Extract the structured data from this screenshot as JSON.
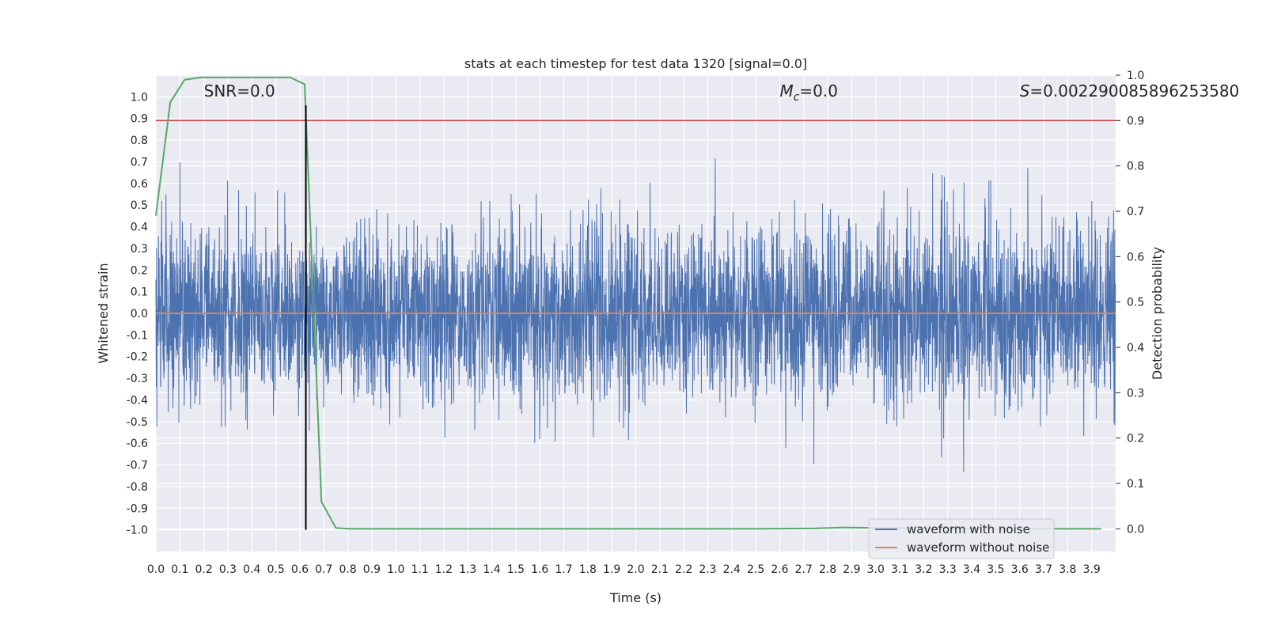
{
  "chart_data": {
    "type": "line",
    "title": "stats at each timestep for test data 1320 [signal=0.0]",
    "xlabel": "Time (s)",
    "ylabel": "Whitened strain",
    "y2label": "Detection probability",
    "xlim": [
      0.0,
      4.0
    ],
    "ylim": [
      -1.1,
      1.1
    ],
    "y2lim": [
      -0.05,
      1.0
    ],
    "x_ticks": [
      "0.0",
      "0.1",
      "0.2",
      "0.3",
      "0.4",
      "0.5",
      "0.6",
      "0.7",
      "0.8",
      "0.9",
      "1.0",
      "1.1",
      "1.2",
      "1.3",
      "1.4",
      "1.5",
      "1.6",
      "1.7",
      "1.8",
      "1.9",
      "2.0",
      "2.1",
      "2.2",
      "2.3",
      "2.4",
      "2.5",
      "2.6",
      "2.7",
      "2.8",
      "2.9",
      "3.0",
      "3.1",
      "3.2",
      "3.3",
      "3.4",
      "3.5",
      "3.6",
      "3.7",
      "3.8",
      "3.9"
    ],
    "y_ticks": [
      "1.0",
      "0.9",
      "0.8",
      "0.7",
      "0.6",
      "0.5",
      "0.4",
      "0.3",
      "0.2",
      "0.1",
      "0.0",
      "-0.1",
      "-0.2",
      "-0.3",
      "-0.4",
      "-0.5",
      "-0.6",
      "-0.7",
      "-0.8",
      "-0.9",
      "-1.0"
    ],
    "y2_ticks": [
      "1.0",
      "0.9",
      "0.8",
      "0.7",
      "0.6",
      "0.5",
      "0.4",
      "0.3",
      "0.2",
      "0.1",
      "0.0"
    ],
    "annotations": {
      "snr": "SNR=0.0",
      "mc": "M",
      "mc_sub": "c",
      "mc_value": "=0.0",
      "s": "S",
      "s_value": "=0.002290085896253580"
    },
    "legend": {
      "placement": "lower-right",
      "entries": [
        {
          "label": "waveform with noise",
          "color": "#4c72b0"
        },
        {
          "label": "waveform without noise",
          "color": "#dd8452"
        }
      ]
    },
    "series": [
      {
        "name": "waveform with noise",
        "color": "#4c72b0",
        "axis": "left",
        "style": "dense-noise",
        "samples": 4096,
        "seed": 1320,
        "typical_amplitude": 0.33,
        "peak_amplitude": 0.96
      },
      {
        "name": "waveform without noise",
        "color": "#dd8452",
        "axis": "left",
        "x": [
          0.0,
          4.0
        ],
        "values": [
          0.0,
          0.0
        ]
      },
      {
        "color": "#55a868",
        "axis": "right",
        "x": [
          0.0,
          0.06,
          0.12,
          0.19,
          0.25,
          0.31,
          0.37,
          0.44,
          0.5,
          0.56,
          0.62,
          0.69,
          0.75,
          0.81,
          1.0,
          1.5,
          2.0,
          2.5,
          2.75,
          2.87,
          3.0,
          3.25,
          3.5,
          3.75,
          3.94
        ],
        "values": [
          0.69,
          0.94,
          0.99,
          0.995,
          0.995,
          0.995,
          0.995,
          0.995,
          0.995,
          0.995,
          0.98,
          0.06,
          0.002,
          0.0,
          0.0,
          0.0,
          0.0,
          0.0,
          0.001,
          0.003,
          0.002,
          0.001,
          0.0,
          0.0,
          0.0
        ]
      }
    ],
    "threshold": {
      "axis": "right",
      "value": 0.9,
      "color": "#c44e52"
    },
    "vline": {
      "x": 0.625,
      "ymin": -1.0,
      "ymax": 0.96,
      "color": "#000000"
    },
    "grid": true,
    "background": "#eaeaf2"
  }
}
